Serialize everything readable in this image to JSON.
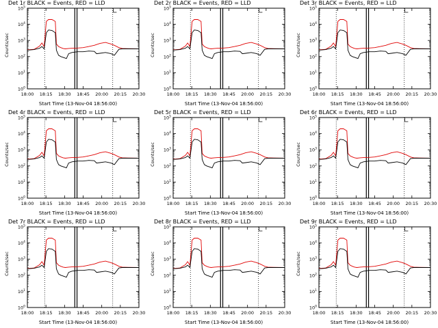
{
  "x_label": "Start Time (13-Nov-04 18:56:00)",
  "y_label": "Counts/sec",
  "legend_text": "BLACK = Events, RED = LLD",
  "colors": {
    "events": "#000000",
    "lld": "#e00000"
  },
  "chart_data": [
    {
      "title": "Det 1r BLACK = Events, RED = LLD"
    },
    {
      "title": "Det 2r BLACK = Events, RED = LLD"
    },
    {
      "title": "Det 3r BLACK = Events, RED = LLD"
    },
    {
      "title": "Det 4r BLACK = Events, RED = LLD"
    },
    {
      "title": "Det 5r BLACK = Events, RED = LLD"
    },
    {
      "title": "Det 6r BLACK = Events, RED = LLD"
    },
    {
      "title": "Det 7r BLACK = Events, RED = LLD"
    },
    {
      "title": "Det 8r BLACK = Events, RED = LLD"
    },
    {
      "title": "Det 9r BLACK = Events, RED = LLD"
    }
  ],
  "shared_chart": {
    "type": "line",
    "x_ticks": [
      "18:00",
      "18:15",
      "18:30",
      "18:45",
      "20:00",
      "20:15",
      "20:30"
    ],
    "y_ticks": [
      "10^0",
      "10^1",
      "10^2",
      "10^3",
      "10^4",
      "10^5"
    ],
    "y_scale": "log",
    "ylim": [
      1,
      100000
    ],
    "series": [
      {
        "name": "Events",
        "points": [
          [
            0,
            250
          ],
          [
            0.06,
            270
          ],
          [
            0.11,
            330
          ],
          [
            0.13,
            420
          ],
          [
            0.15,
            300
          ],
          [
            0.17,
            3000
          ],
          [
            0.19,
            4500
          ],
          [
            0.22,
            4200
          ],
          [
            0.25,
            3000
          ],
          [
            0.26,
            250
          ],
          [
            0.28,
            120
          ],
          [
            0.3,
            100
          ],
          [
            0.32,
            90
          ],
          [
            0.34,
            80
          ],
          [
            0.35,
            75
          ],
          [
            0.37,
            150
          ],
          [
            0.4,
            180
          ],
          [
            0.45,
            200
          ],
          [
            0.5,
            200
          ],
          [
            0.55,
            220
          ],
          [
            0.6,
            210
          ],
          [
            0.62,
            150
          ],
          [
            0.65,
            160
          ],
          [
            0.7,
            180
          ],
          [
            0.75,
            150
          ],
          [
            0.78,
            120
          ],
          [
            0.82,
            280
          ],
          [
            0.85,
            300
          ],
          [
            0.9,
            300
          ],
          [
            1,
            300
          ]
        ]
      },
      {
        "name": "LLD",
        "points": [
          [
            0,
            260
          ],
          [
            0.06,
            280
          ],
          [
            0.11,
            450
          ],
          [
            0.13,
            700
          ],
          [
            0.15,
            420
          ],
          [
            0.17,
            15000
          ],
          [
            0.19,
            20000
          ],
          [
            0.22,
            20000
          ],
          [
            0.25,
            15000
          ],
          [
            0.26,
            600
          ],
          [
            0.28,
            420
          ],
          [
            0.3,
            360
          ],
          [
            0.32,
            320
          ],
          [
            0.34,
            300
          ],
          [
            0.37,
            320
          ],
          [
            0.4,
            330
          ],
          [
            0.45,
            340
          ],
          [
            0.5,
            360
          ],
          [
            0.55,
            420
          ],
          [
            0.6,
            500
          ],
          [
            0.65,
            650
          ],
          [
            0.7,
            750
          ],
          [
            0.75,
            600
          ],
          [
            0.78,
            500
          ],
          [
            0.82,
            360
          ],
          [
            0.85,
            320
          ],
          [
            0.9,
            310
          ],
          [
            1,
            300
          ]
        ]
      }
    ],
    "dotted_vlines": [
      0.155,
      0.765
    ],
    "solid_vlines": [
      0.425,
      0.445
    ]
  }
}
